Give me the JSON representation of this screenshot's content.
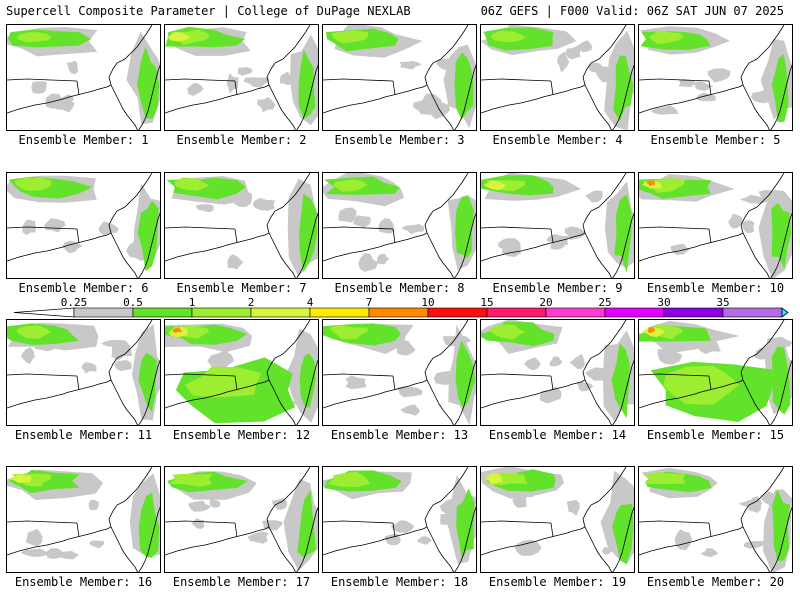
{
  "header": {
    "title": "Supercell Composite Parameter | College of DuPage NEXLAB",
    "valid": "06Z GEFS | F000 Valid: 06Z SAT JUN 07 2025"
  },
  "colorbar": {
    "labels": [
      "0.25",
      "0.5",
      "1",
      "2",
      "4",
      "7",
      "10",
      "15",
      "20",
      "25",
      "30",
      "35"
    ],
    "colors": [
      "#c8c8c8",
      "#63e22b",
      "#9dee31",
      "#d6f53c",
      "#ffea00",
      "#ff8a00",
      "#ff0f0f",
      "#ff1b6b",
      "#ff3bd2",
      "#e100ff",
      "#8c00e0",
      "#b46ce4",
      "#33e6ff"
    ]
  },
  "members": [
    {
      "caption": "Ensemble Member: 1"
    },
    {
      "caption": "Ensemble Member: 2"
    },
    {
      "caption": "Ensemble Member: 3"
    },
    {
      "caption": "Ensemble Member: 4"
    },
    {
      "caption": "Ensemble Member: 5"
    },
    {
      "caption": "Ensemble Member: 6"
    },
    {
      "caption": "Ensemble Member: 7"
    },
    {
      "caption": "Ensemble Member: 8"
    },
    {
      "caption": "Ensemble Member: 9"
    },
    {
      "caption": "Ensemble Member: 10"
    },
    {
      "caption": "Ensemble Member: 11"
    },
    {
      "caption": "Ensemble Member: 12"
    },
    {
      "caption": "Ensemble Member: 13"
    },
    {
      "caption": "Ensemble Member: 14"
    },
    {
      "caption": "Ensemble Member: 15"
    },
    {
      "caption": "Ensemble Member: 16"
    },
    {
      "caption": "Ensemble Member: 17"
    },
    {
      "caption": "Ensemble Member: 18"
    },
    {
      "caption": "Ensemble Member: 19"
    },
    {
      "caption": "Ensemble Member: 20"
    }
  ]
}
